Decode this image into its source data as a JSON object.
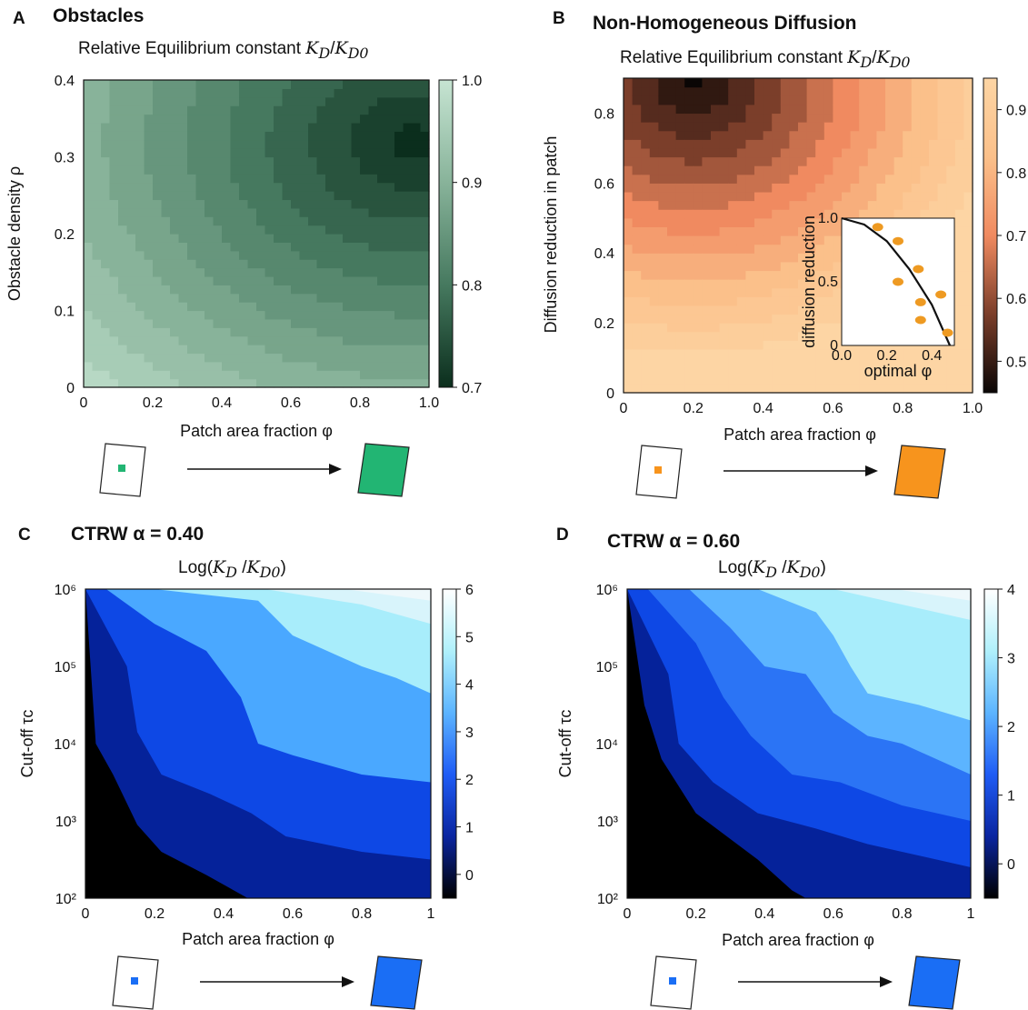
{
  "chart_data": [
    {
      "panel": "A",
      "title": "Obstacles",
      "subtitle": "Relative Equilibrium constant K_D/K_D0",
      "type": "heatmap",
      "xlabel": "Patch area fraction φ",
      "ylabel": "Obstacle density ρ",
      "xlim": [
        0,
        1.0
      ],
      "ylim": [
        0,
        0.4
      ],
      "xticks": [
        "0",
        "0.2",
        "0.4",
        "0.6",
        "0.8",
        "1.0"
      ],
      "yticks": [
        "0",
        "0.1",
        "0.2",
        "0.3",
        "0.4"
      ],
      "colorbar": {
        "ticks": [
          "0.7",
          "0.8",
          "0.9",
          "1.0"
        ],
        "min": 0.7,
        "max": 1.0,
        "colors": [
          "#0b2e1d",
          "#46795f",
          "#88b39a",
          "#c6e4d2"
        ]
      },
      "field": {
        "min_at": [
          0.95,
          0.32
        ],
        "min": 0.7,
        "max": 1.0,
        "spread": 1.35
      },
      "schematic_color": "#22b573"
    },
    {
      "panel": "B",
      "title": "Non-Homogeneous Diffusion",
      "subtitle": "Relative Equilibrium constant K_D/K_D0",
      "type": "heatmap",
      "xlabel": "Patch area fraction φ",
      "ylabel": "Diffusion reduction in patch",
      "xlim": [
        0,
        1.0
      ],
      "ylim": [
        0,
        0.9
      ],
      "xticks": [
        "0",
        "0.2",
        "0.4",
        "0.6",
        "0.8",
        "1.0"
      ],
      "yticks": [
        "0",
        "0.2",
        "0.4",
        "0.6",
        "0.8"
      ],
      "colorbar": {
        "ticks": [
          "0.5",
          "0.6",
          "0.7",
          "0.8",
          "0.9"
        ],
        "min": 0.45,
        "max": 0.95,
        "colors": [
          "#0a0605",
          "#7b3e2a",
          "#f08a60",
          "#fbc08a",
          "#fdd5a4"
        ]
      },
      "field": {
        "min_at": [
          0.2,
          0.9
        ],
        "min": 0.45,
        "max": 0.95,
        "spread": 0.9
      },
      "inset": {
        "xlabel": "optimal φ",
        "ylabel": "diffusion reduction",
        "xticks": [
          "0.0",
          "0.2",
          "0.4"
        ],
        "yticks": [
          "0",
          "0.5",
          "1.0"
        ],
        "xlim": [
          0,
          0.5
        ],
        "ylim": [
          0,
          1.0
        ],
        "points": [
          [
            0.16,
            0.93
          ],
          [
            0.25,
            0.82
          ],
          [
            0.25,
            0.5
          ],
          [
            0.34,
            0.6
          ],
          [
            0.35,
            0.34
          ],
          [
            0.35,
            0.2
          ],
          [
            0.44,
            0.4
          ],
          [
            0.47,
            0.1
          ]
        ],
        "curve": [
          [
            0,
            1.0
          ],
          [
            0.1,
            0.95
          ],
          [
            0.2,
            0.82
          ],
          [
            0.3,
            0.6
          ],
          [
            0.4,
            0.32
          ],
          [
            0.48,
            0.0
          ]
        ]
      },
      "schematic_color": "#f7941d"
    },
    {
      "panel": "C",
      "title": "CTRW α = 0.40",
      "subtitle": "Log(K_D /K_D0)",
      "type": "heatmap",
      "xlabel": "Patch area fraction φ",
      "ylabel": "Cut-off τc",
      "xlim": [
        0,
        1
      ],
      "ylim": [
        2,
        6
      ],
      "xticks": [
        "0",
        "0.2",
        "0.4",
        "0.6",
        "0.8",
        "1"
      ],
      "yticks": [
        "10²",
        "10³",
        "10⁴",
        "10⁵",
        "10⁶"
      ],
      "colorbar": {
        "ticks": [
          "0",
          "1",
          "2",
          "3",
          "4",
          "5",
          "6"
        ],
        "min": -0.5,
        "max": 6,
        "colors": [
          "#000000",
          "#0a25a0",
          "#1f5cf5",
          "#5cb4ff",
          "#b0f0fb",
          "#ffffff"
        ]
      },
      "field": {
        "min_at": [
          0,
          2
        ],
        "min": -0.5,
        "max": 6
      },
      "boundaries": [
        {
          "level": 0,
          "color": "#000000",
          "pts": [
            [
              0,
              6
            ],
            [
              0.03,
              4
            ],
            [
              0.08,
              3.6
            ],
            [
              0.15,
              2.95
            ],
            [
              0.22,
              2.6
            ],
            [
              0.35,
              2.3
            ],
            [
              0.47,
              2.0
            ]
          ]
        },
        {
          "level": 1,
          "color": "#05229a",
          "pts": [
            [
              0,
              6
            ],
            [
              0.12,
              5
            ],
            [
              0.15,
              4.15
            ],
            [
              0.22,
              3.6
            ],
            [
              0.36,
              3.35
            ],
            [
              0.48,
              3.1
            ],
            [
              0.58,
              2.8
            ],
            [
              0.8,
              2.6
            ],
            [
              1,
              2.5
            ]
          ]
        },
        {
          "level": 2,
          "color": "#0e48e5",
          "pts": [
            [
              0.06,
              6
            ],
            [
              0.2,
              5.55
            ],
            [
              0.35,
              5.2
            ],
            [
              0.45,
              4.6
            ],
            [
              0.5,
              4.0
            ],
            [
              0.6,
              3.85
            ],
            [
              0.8,
              3.6
            ],
            [
              1,
              3.5
            ]
          ]
        },
        {
          "level": 3,
          "color": "#4aa8ff",
          "pts": [
            [
              0.2,
              6
            ],
            [
              0.5,
              5.85
            ],
            [
              0.6,
              5.4
            ],
            [
              0.8,
              5.0
            ],
            [
              0.9,
              4.85
            ],
            [
              1,
              4.65
            ]
          ]
        },
        {
          "level": 4,
          "color": "#a8edfb",
          "pts": [
            [
              0.52,
              6
            ],
            [
              0.8,
              5.8
            ],
            [
              1,
              5.55
            ]
          ]
        },
        {
          "level": 5,
          "color": "#d8f4fb",
          "pts": [
            [
              0.75,
              6
            ],
            [
              1,
              5.85
            ]
          ]
        }
      ],
      "schematic_color": "#1a6ef5"
    },
    {
      "panel": "D",
      "title": "CTRW α = 0.60",
      "subtitle": "Log(K_D /K_D0)",
      "type": "heatmap",
      "xlabel": "Patch area fraction φ",
      "ylabel": "Cut-off τc",
      "xlim": [
        0,
        1
      ],
      "ylim": [
        2,
        6
      ],
      "xticks": [
        "0",
        "0.2",
        "0.4",
        "0.6",
        "0.8",
        "1"
      ],
      "yticks": [
        "10²",
        "10³",
        "10⁴",
        "10⁵",
        "10⁶"
      ],
      "colorbar": {
        "ticks": [
          "0",
          "1",
          "2",
          "3",
          "4"
        ],
        "min": -0.5,
        "max": 4.0,
        "colors": [
          "#000000",
          "#0a25a0",
          "#1f5cf5",
          "#5cb4ff",
          "#b0f0fb",
          "#ffffff"
        ]
      },
      "field": {
        "min_at": [
          0,
          2
        ],
        "min": -0.5,
        "max": 4
      },
      "boundaries": [
        {
          "level": -0.5,
          "color": "#000000",
          "pts": [
            [
              0,
              6
            ],
            [
              0.05,
              4.5
            ],
            [
              0.1,
              3.8
            ],
            [
              0.2,
              3.1
            ],
            [
              0.38,
              2.5
            ],
            [
              0.48,
              2.1
            ],
            [
              0.52,
              2.0
            ]
          ]
        },
        {
          "level": 0.5,
          "color": "#05229a",
          "pts": [
            [
              0,
              6
            ],
            [
              0.12,
              4.9
            ],
            [
              0.15,
              4.0
            ],
            [
              0.25,
              3.5
            ],
            [
              0.38,
              3.1
            ],
            [
              0.55,
              2.9
            ],
            [
              0.7,
              2.7
            ],
            [
              0.8,
              2.6
            ],
            [
              1,
              2.4
            ]
          ]
        },
        {
          "level": 1.0,
          "color": "#0e48e5",
          "pts": [
            [
              0.06,
              6
            ],
            [
              0.2,
              5.3
            ],
            [
              0.28,
              4.6
            ],
            [
              0.36,
              4.1
            ],
            [
              0.48,
              3.6
            ],
            [
              0.62,
              3.5
            ],
            [
              0.8,
              3.2
            ],
            [
              1,
              3.0
            ]
          ]
        },
        {
          "level": 1.5,
          "color": "#2b74f5",
          "pts": [
            [
              0.18,
              6
            ],
            [
              0.3,
              5.5
            ],
            [
              0.4,
              5.0
            ],
            [
              0.52,
              4.9
            ],
            [
              0.6,
              4.4
            ],
            [
              0.7,
              4.1
            ],
            [
              0.8,
              4.0
            ],
            [
              1,
              3.6
            ]
          ]
        },
        {
          "level": 2.0,
          "color": "#5cb4ff",
          "pts": [
            [
              0.38,
              6
            ],
            [
              0.55,
              5.7
            ],
            [
              0.6,
              5.4
            ],
            [
              0.65,
              5.0
            ],
            [
              0.7,
              4.65
            ],
            [
              0.85,
              4.5
            ],
            [
              1,
              4.3
            ]
          ]
        },
        {
          "level": 3.0,
          "color": "#a8edfb",
          "pts": [
            [
              0.6,
              6
            ],
            [
              0.8,
              5.8
            ],
            [
              1,
              5.6
            ]
          ]
        },
        {
          "level": 3.5,
          "color": "#d8f4fb",
          "pts": [
            [
              0.78,
              6
            ],
            [
              1,
              5.85
            ]
          ]
        }
      ],
      "schematic_color": "#1a6ef5"
    }
  ]
}
